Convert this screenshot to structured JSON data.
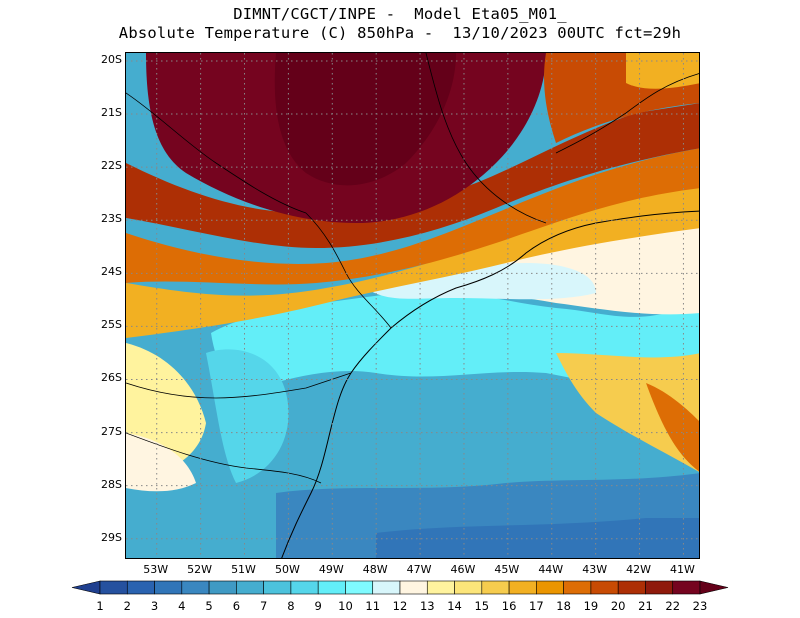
{
  "title": {
    "line1": "DIMNT/CGCT/INPE -  Model Eta05_M01_",
    "line2": "Absolute Temperature (C) 850hPa -  13/10/2023 00UTC fct=29h"
  },
  "map": {
    "lon_range": [
      -53.7,
      -40.6
    ],
    "lat_range": [
      -29.4,
      -19.85
    ],
    "lat_ticks": [
      "20S",
      "21S",
      "22S",
      "23S",
      "24S",
      "25S",
      "26S",
      "27S",
      "28S",
      "29S"
    ],
    "lon_ticks": [
      "53W",
      "52W",
      "51W",
      "50W",
      "49W",
      "48W",
      "47W",
      "46W",
      "45W",
      "44W",
      "43W",
      "42W",
      "41W"
    ],
    "grid": "dotted",
    "field": "temperature_850hPa_C",
    "regions_description_free": true
  },
  "colorbar": {
    "labels": [
      "1",
      "2",
      "3",
      "4",
      "5",
      "6",
      "7",
      "8",
      "9",
      "10",
      "11",
      "12",
      "13",
      "14",
      "15",
      "16",
      "17",
      "18",
      "19",
      "20",
      "21",
      "22",
      "23"
    ],
    "colors": [
      "#1f3f8f",
      "#25519f",
      "#2a63b0",
      "#3175b8",
      "#3a87c0",
      "#3f9ac4",
      "#45adcf",
      "#4cc2dc",
      "#55d6ea",
      "#63eef8",
      "#7ffbff",
      "#d8f6fb",
      "#fff5e1",
      "#fff39e",
      "#fce57a",
      "#f6cc4e",
      "#f2b022",
      "#eb9500",
      "#dd6d05",
      "#c84b04",
      "#ad2f05",
      "#8f1a0c",
      "#75041f",
      "#640019"
    ]
  }
}
